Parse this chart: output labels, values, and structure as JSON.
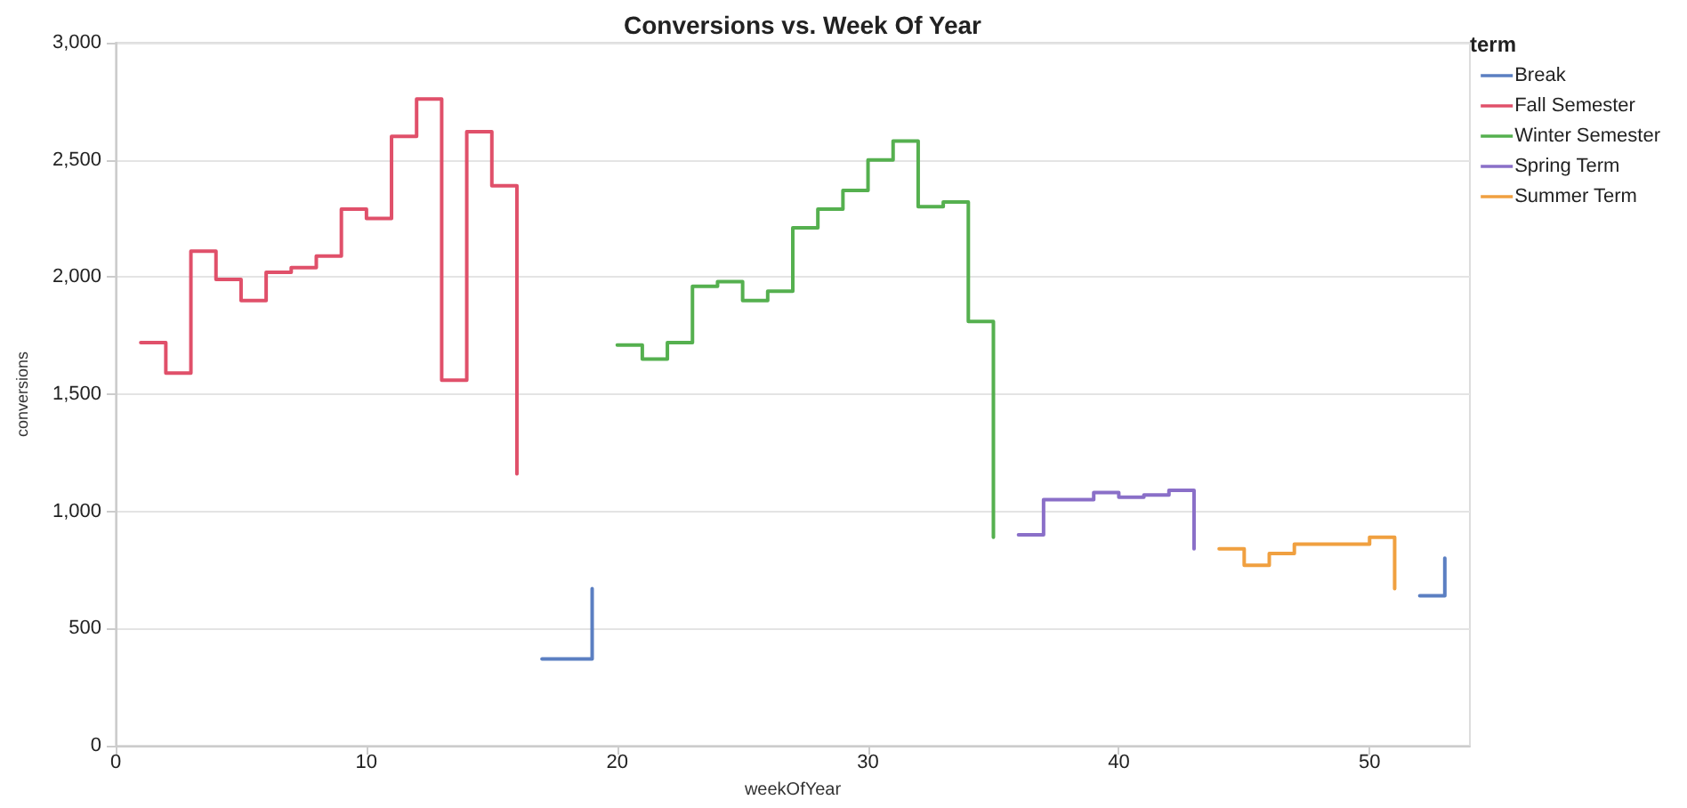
{
  "chart_data": {
    "type": "step",
    "title": "Conversions vs. Week Of Year",
    "xlabel": "weekOfYear",
    "ylabel": "conversions",
    "legend_title": "term",
    "x": [
      1,
      2,
      3,
      4,
      5,
      6,
      7,
      8,
      9,
      10,
      11,
      12,
      13,
      14,
      15,
      16,
      17,
      18,
      19,
      20,
      21,
      22,
      23,
      24,
      25,
      26,
      27,
      28,
      29,
      30,
      31,
      32,
      33,
      34,
      35,
      36,
      37,
      38,
      39,
      40,
      41,
      42,
      43,
      44,
      45,
      46,
      47,
      48,
      49,
      50,
      51,
      52,
      53
    ],
    "series": [
      {
        "name": "Break",
        "color": "#5b7fc2",
        "values": [
          null,
          null,
          null,
          null,
          null,
          null,
          null,
          null,
          null,
          null,
          null,
          null,
          null,
          null,
          null,
          null,
          370,
          370,
          670,
          null,
          null,
          null,
          null,
          null,
          null,
          null,
          null,
          null,
          null,
          null,
          null,
          null,
          null,
          null,
          null,
          null,
          null,
          null,
          null,
          null,
          null,
          null,
          null,
          null,
          null,
          null,
          null,
          null,
          null,
          null,
          null,
          640,
          800
        ]
      },
      {
        "name": "Fall Semester",
        "color": "#e0506a",
        "values": [
          1720,
          1590,
          2110,
          1990,
          1900,
          2020,
          2040,
          2090,
          2290,
          2250,
          2600,
          2760,
          1560,
          2620,
          2390,
          1160,
          null,
          null,
          null,
          null,
          null,
          null,
          null,
          null,
          null,
          null,
          null,
          null,
          null,
          null,
          null,
          null,
          null,
          null,
          null,
          null,
          null,
          null,
          null,
          null,
          null,
          null,
          null,
          null,
          null,
          null,
          null,
          null,
          null,
          null,
          null,
          null,
          null
        ]
      },
      {
        "name": "Winter Semester",
        "color": "#55b04f",
        "values": [
          null,
          null,
          null,
          null,
          null,
          null,
          null,
          null,
          null,
          null,
          null,
          null,
          null,
          null,
          null,
          null,
          null,
          null,
          null,
          1710,
          1650,
          1720,
          1960,
          1980,
          1900,
          1940,
          2210,
          2290,
          2370,
          2500,
          2580,
          2300,
          2320,
          1810,
          890,
          null,
          null,
          null,
          null,
          null,
          null,
          null,
          null,
          null,
          null,
          null,
          null,
          null,
          null,
          null,
          null,
          null,
          null
        ]
      },
      {
        "name": "Spring Term",
        "color": "#8a6fc8",
        "values": [
          null,
          null,
          null,
          null,
          null,
          null,
          null,
          null,
          null,
          null,
          null,
          null,
          null,
          null,
          null,
          null,
          null,
          null,
          null,
          null,
          null,
          null,
          null,
          null,
          null,
          null,
          null,
          null,
          null,
          null,
          null,
          null,
          null,
          null,
          null,
          900,
          1050,
          1050,
          1080,
          1060,
          1070,
          1090,
          840,
          null,
          null,
          null,
          null,
          null,
          null,
          null,
          null,
          null,
          null
        ]
      },
      {
        "name": "Summer Term",
        "color": "#f0a040",
        "values": [
          null,
          null,
          null,
          null,
          null,
          null,
          null,
          null,
          null,
          null,
          null,
          null,
          null,
          null,
          null,
          null,
          null,
          null,
          null,
          null,
          null,
          null,
          null,
          null,
          null,
          null,
          null,
          null,
          null,
          null,
          null,
          null,
          null,
          null,
          null,
          null,
          null,
          null,
          null,
          null,
          null,
          null,
          null,
          840,
          770,
          820,
          860,
          860,
          860,
          890,
          670,
          null,
          null
        ]
      }
    ],
    "xlim": [
      0,
      54
    ],
    "xticks": [
      0,
      10,
      20,
      30,
      40,
      50
    ],
    "ylim": [
      0,
      3000
    ],
    "yticks": [
      0,
      500,
      {
        "value": 1000,
        "label": "1,000"
      },
      {
        "value": 1500,
        "label": "1,500"
      },
      {
        "value": 2000,
        "label": "2,000"
      },
      {
        "value": 2500,
        "label": "2,500"
      },
      {
        "value": 3000,
        "label": "3,000"
      }
    ],
    "grid": "y",
    "legend": "top right",
    "line_style": "solid"
  }
}
